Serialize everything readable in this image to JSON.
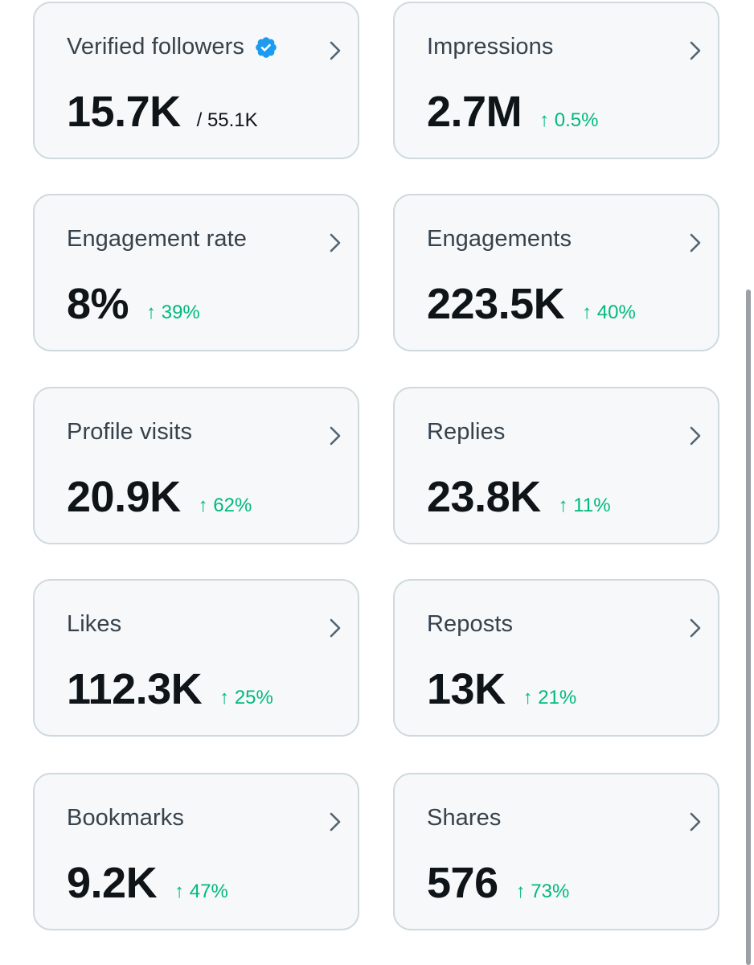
{
  "cards": [
    {
      "title": "Verified followers",
      "value": "15.7K",
      "sub": "/ 55.1K",
      "verified_icon": "verified-badge-icon",
      "chevron_icon": "chevron-right-icon"
    },
    {
      "title": "Impressions",
      "value": "2.7M",
      "change": "↑ 0.5%",
      "chevron_icon": "chevron-right-icon"
    },
    {
      "title": "Engagement rate",
      "value": "8%",
      "change": "↑ 39%",
      "chevron_icon": "chevron-right-icon"
    },
    {
      "title": "Engagements",
      "value": "223.5K",
      "change": "↑ 40%",
      "chevron_icon": "chevron-right-icon"
    },
    {
      "title": "Profile visits",
      "value": "20.9K",
      "change": "↑ 62%",
      "chevron_icon": "chevron-right-icon"
    },
    {
      "title": "Replies",
      "value": "23.8K",
      "change": "↑ 11%",
      "chevron_icon": "chevron-right-icon"
    },
    {
      "title": "Likes",
      "value": "112.3K",
      "change": "↑ 25%",
      "chevron_icon": "chevron-right-icon"
    },
    {
      "title": "Reposts",
      "value": "13K",
      "change": "↑ 21%",
      "chevron_icon": "chevron-right-icon"
    },
    {
      "title": "Bookmarks",
      "value": "9.2K",
      "change": "↑ 47%",
      "chevron_icon": "chevron-right-icon"
    },
    {
      "title": "Shares",
      "value": "576",
      "change": "↑ 73%",
      "chevron_icon": "chevron-right-icon"
    }
  ],
  "colors": {
    "card_bg": "#f6f8f9",
    "card_border": "#cfd9de",
    "title": "#36424c",
    "value": "#0f1419",
    "positive_change": "#00ba7c",
    "verified_badge": "#1d9bf0",
    "chevron": "#536471"
  }
}
